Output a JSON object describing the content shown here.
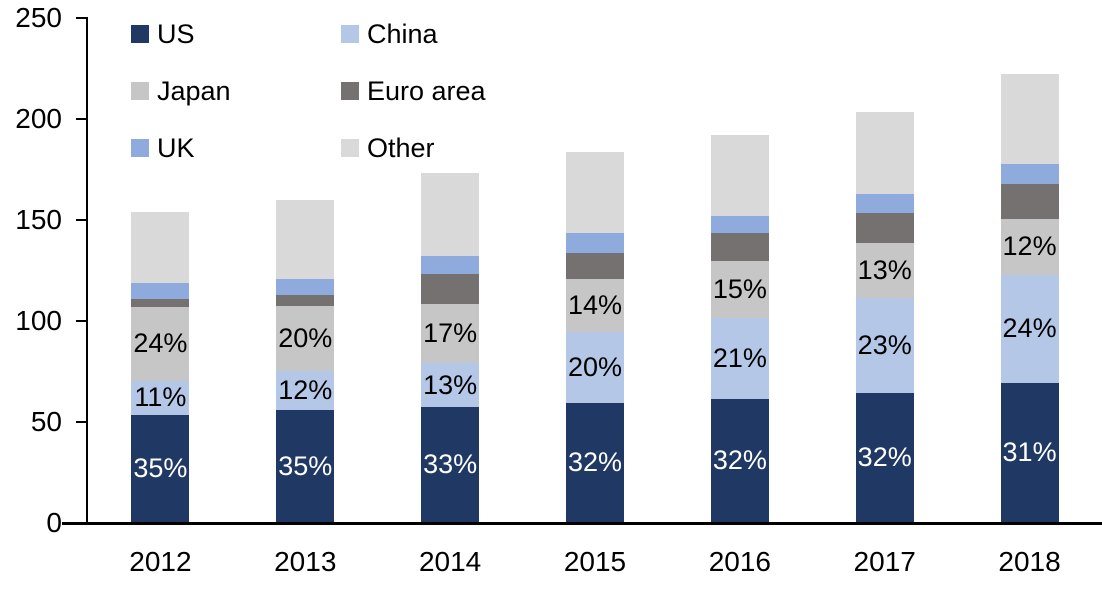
{
  "chart_data": {
    "type": "bar",
    "stacked": true,
    "title": "",
    "xlabel": "",
    "ylabel": "",
    "categories": [
      "2012",
      "2013",
      "2014",
      "2015",
      "2016",
      "2017",
      "2018"
    ],
    "series": [
      {
        "name": "US",
        "color": "#1F3864",
        "label_color": "#FFFFFF",
        "values": [
          53.5,
          56,
          57.5,
          59.5,
          61.5,
          64.5,
          69.5
        ],
        "labels": [
          "35%",
          "35%",
          "33%",
          "32%",
          "32%",
          "32%",
          "31%"
        ]
      },
      {
        "name": "China",
        "color": "#B4C7E7",
        "label_color": "#000000",
        "values": [
          17,
          19.5,
          21.5,
          35,
          40,
          47,
          53.5
        ],
        "labels": [
          "11%",
          "12%",
          "13%",
          "20%",
          "21%",
          "23%",
          "24%"
        ]
      },
      {
        "name": "Japan",
        "color": "#C6C6C6",
        "label_color": "#000000",
        "values": [
          36.5,
          32,
          29.5,
          26.5,
          28,
          27,
          27.5
        ],
        "labels": [
          "24%",
          "20%",
          "17%",
          "14%",
          "15%",
          "13%",
          "12%"
        ]
      },
      {
        "name": "Euro area",
        "color": "#757171",
        "label_color": "#000000",
        "values": [
          4,
          5.5,
          15,
          12.5,
          14,
          15,
          17.5
        ],
        "labels": [
          null,
          null,
          null,
          null,
          null,
          null,
          null
        ]
      },
      {
        "name": "UK",
        "color": "#8FAADC",
        "label_color": "#000000",
        "values": [
          8,
          8,
          8.5,
          10,
          8.5,
          9.5,
          9.5
        ],
        "labels": [
          null,
          null,
          null,
          null,
          null,
          null,
          null
        ]
      },
      {
        "name": "Other",
        "color": "#D9D9D9",
        "label_color": "#000000",
        "values": [
          35,
          39,
          41.5,
          40,
          40,
          40.5,
          45
        ],
        "labels": [
          null,
          null,
          null,
          null,
          null,
          null,
          null
        ]
      }
    ],
    "totals": [
      154,
      160,
      173.5,
      183.5,
      192,
      203.5,
      222.5
    ],
    "yaxis": {
      "min": 0,
      "max": 250,
      "tick_interval": 50,
      "tick_labels": [
        "0",
        "50",
        "100",
        "150",
        "200",
        "250"
      ]
    },
    "legend": {
      "position": "top-left",
      "columns": 2,
      "order": [
        "US",
        "China",
        "Japan",
        "Euro area",
        "UK",
        "Other"
      ]
    },
    "grid": false,
    "axis_color": "#000000"
  }
}
